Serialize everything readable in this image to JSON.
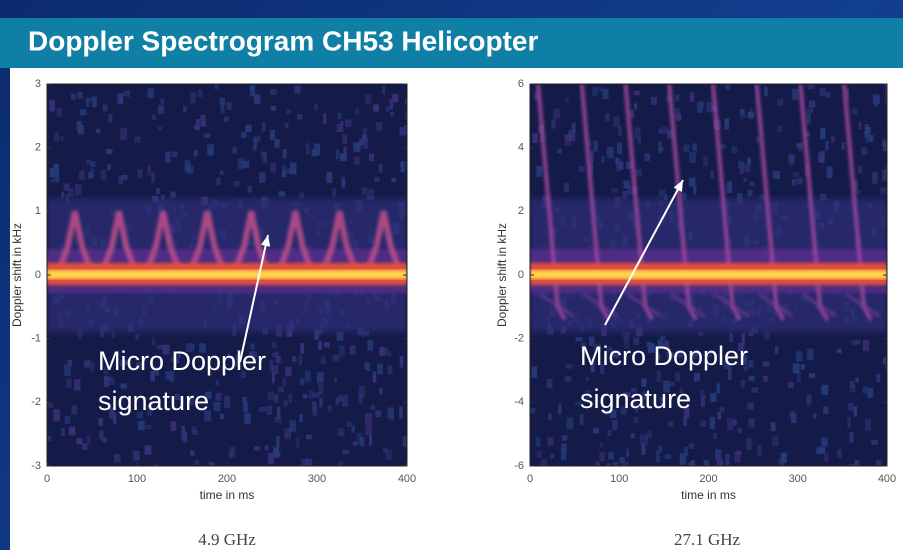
{
  "header": {
    "title": "Doppler Spectrogram CH53 Helicopter"
  },
  "panels": [
    {
      "ylabel": "Doppler shift in kHz",
      "xlabel": "time in ms",
      "xticks": [
        0,
        100,
        200,
        300,
        400
      ],
      "yticks": [
        -3,
        -2,
        -1,
        0,
        1,
        2,
        3
      ],
      "annotation": [
        "Micro Doppler",
        "signature"
      ],
      "caption": "4.9 GHz"
    },
    {
      "ylabel": "Doppler shift in kHz",
      "xlabel": "time in ms",
      "xticks": [
        0,
        100,
        200,
        300,
        400
      ],
      "yticks": [
        -6,
        -4,
        -2,
        0,
        2,
        4,
        6
      ],
      "annotation": [
        "Micro Doppler",
        "signature"
      ],
      "caption": "27.1 GHz"
    }
  ]
}
